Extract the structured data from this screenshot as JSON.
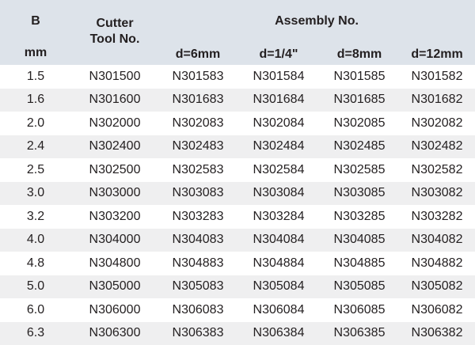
{
  "header": {
    "b_label": "B",
    "b_unit": "mm",
    "cutter_label": "Cutter\nTool No.",
    "assembly_label": "Assembly No.",
    "assembly_columns": [
      "d=6mm",
      "d=1/4\"",
      "d=8mm",
      "d=12mm"
    ]
  },
  "rows": [
    [
      "1.5",
      "N301500",
      "N301583",
      "N301584",
      "N301585",
      "N301582"
    ],
    [
      "1.6",
      "N301600",
      "N301683",
      "N301684",
      "N301685",
      "N301682"
    ],
    [
      "2.0",
      "N302000",
      "N302083",
      "N302084",
      "N302085",
      "N302082"
    ],
    [
      "2.4",
      "N302400",
      "N302483",
      "N302484",
      "N302485",
      "N302482"
    ],
    [
      "2.5",
      "N302500",
      "N302583",
      "N302584",
      "N302585",
      "N302582"
    ],
    [
      "3.0",
      "N303000",
      "N303083",
      "N303084",
      "N303085",
      "N303082"
    ],
    [
      "3.2",
      "N303200",
      "N303283",
      "N303284",
      "N303285",
      "N303282"
    ],
    [
      "4.0",
      "N304000",
      "N304083",
      "N304084",
      "N304085",
      "N304082"
    ],
    [
      "4.8",
      "N304800",
      "N304883",
      "N304884",
      "N304885",
      "N304882"
    ],
    [
      "5.0",
      "N305000",
      "N305083",
      "N305084",
      "N305085",
      "N305082"
    ],
    [
      "6.0",
      "N306000",
      "N306083",
      "N306084",
      "N306085",
      "N306082"
    ],
    [
      "6.3",
      "N306300",
      "N306383",
      "N306384",
      "N306385",
      "N306382"
    ]
  ],
  "colors": {
    "header_bg": "#dde3ea",
    "alt_row_bg": "#efeff0"
  }
}
